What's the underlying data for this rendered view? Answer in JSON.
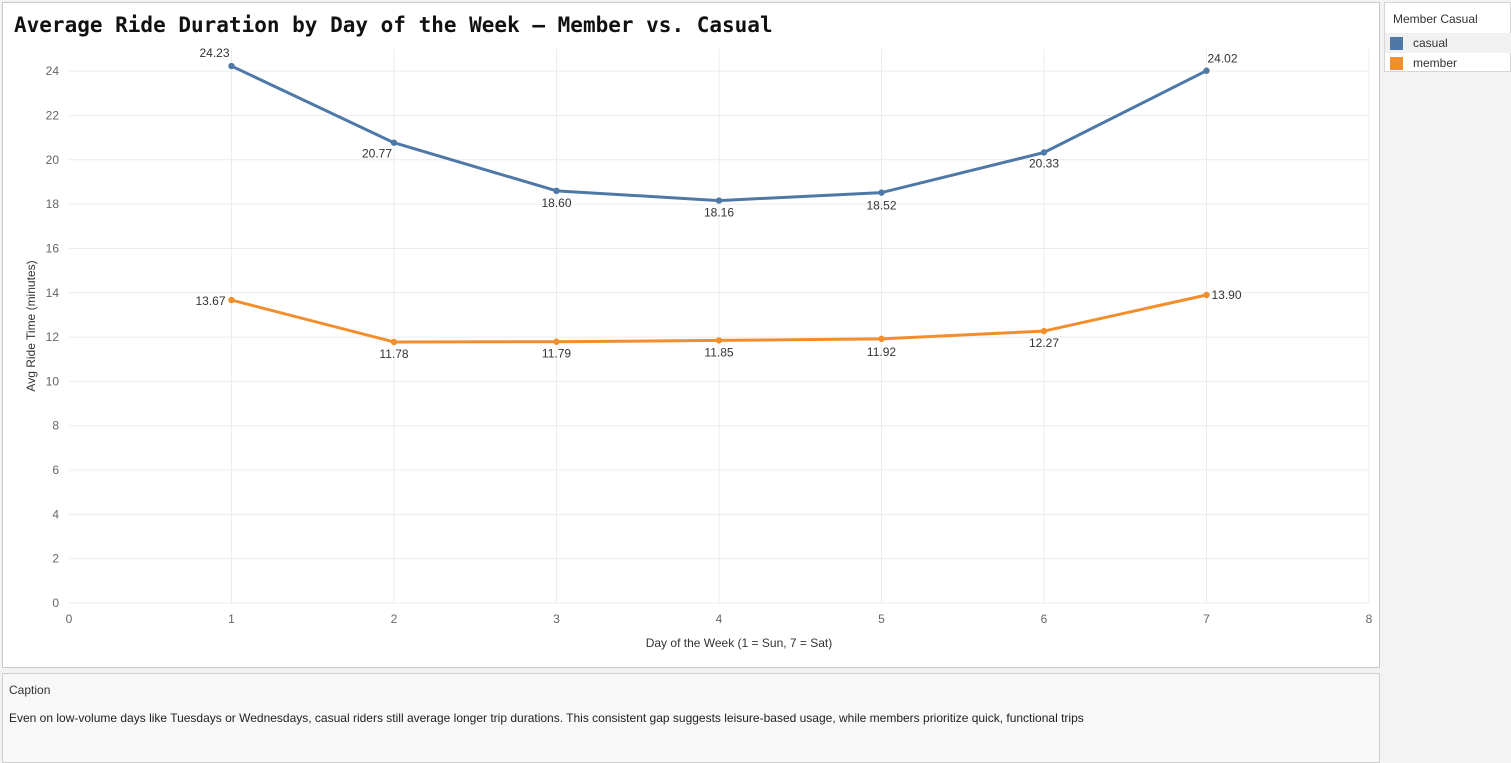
{
  "chart_data": {
    "type": "line",
    "title": "Average Ride Duration by Day of the Week — Member vs. Casual",
    "xlabel": "Day of the Week (1 = Sun, 7 = Sat)",
    "ylabel": "Avg Ride Time (minutes)",
    "x": [
      1,
      2,
      3,
      4,
      5,
      6,
      7
    ],
    "xlim": [
      0,
      8
    ],
    "ylim": [
      0,
      25
    ],
    "x_ticks": [
      0,
      1,
      2,
      3,
      4,
      5,
      6,
      7,
      8
    ],
    "y_ticks": [
      0,
      2,
      4,
      6,
      8,
      10,
      12,
      14,
      16,
      18,
      20,
      22,
      24
    ],
    "grid": true,
    "legend_position": "right",
    "series": [
      {
        "name": "casual",
        "color": "#4e79a7",
        "values": [
          24.23,
          20.77,
          18.6,
          18.16,
          18.52,
          20.33,
          24.02
        ],
        "labels": [
          "24.23",
          "20.77",
          "18.60",
          "18.16",
          "18.52",
          "20.33",
          "24.02"
        ]
      },
      {
        "name": "member",
        "color": "#f28e2b",
        "values": [
          13.67,
          11.78,
          11.79,
          11.85,
          11.92,
          12.27,
          13.9
        ],
        "labels": [
          "13.67",
          "11.78",
          "11.79",
          "11.85",
          "11.92",
          "12.27",
          "13.90"
        ]
      }
    ]
  },
  "legend": {
    "title": "Member Casual",
    "items": [
      {
        "label": "casual",
        "color": "#4e79a7"
      },
      {
        "label": "member",
        "color": "#f28e2b"
      }
    ]
  },
  "caption": {
    "title": "Caption",
    "text": "Even on low-volume days like Tuesdays or Wednesdays, casual riders still average longer trip durations. This consistent gap suggests leisure-based usage, while members prioritize quick, functional trips"
  }
}
